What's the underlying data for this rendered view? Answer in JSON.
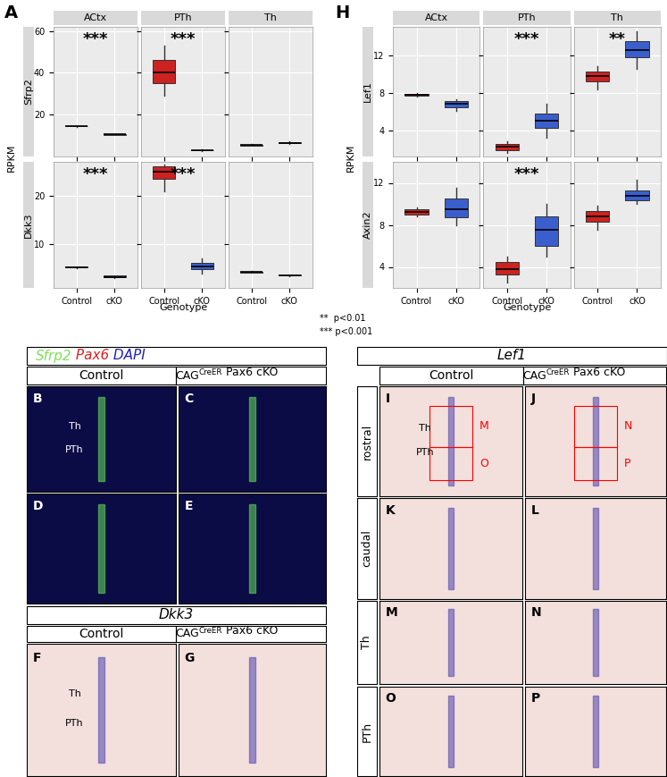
{
  "chart_data": [
    {
      "type": "box",
      "panel": "A",
      "facets": [
        "ACtx",
        "PTh",
        "Th"
      ],
      "categories": [
        "Control",
        "cKO"
      ],
      "colors": [
        "#cc2222",
        "#3a5fcd"
      ],
      "ylabel": "RPKM",
      "xlabel": "Genotype",
      "grid": true,
      "rows": [
        {
          "name": "Sfrp2",
          "ylim": [
            0,
            62
          ],
          "yticks": [
            20,
            40,
            60
          ],
          "boxes": [
            [
              [
                14.3,
                14.4,
                14.5,
                14.6,
                14.7
              ],
              [
                10.3,
                10.4,
                10.5,
                10.6,
                10.7
              ]
            ],
            [
              [
                29,
                35,
                40,
                46,
                53
              ],
              [
                2.5,
                2.8,
                3,
                3.2,
                3.5
              ]
            ],
            [
              [
                5,
                5.3,
                5.5,
                5.7,
                6
              ],
              [
                6,
                6.3,
                6.6,
                6.9,
                7.2
              ]
            ]
          ],
          "stars": [
            "***",
            "***",
            null
          ]
        },
        {
          "name": "Dkk3",
          "ylim": [
            1,
            27
          ],
          "yticks": [
            10,
            20
          ],
          "boxes": [
            [
              [
                5.1,
                5.2,
                5.3,
                5.4,
                5.5
              ],
              [
                3.1,
                3.2,
                3.3,
                3.5,
                3.6
              ]
            ],
            [
              [
                21,
                23.5,
                25,
                26,
                26.5
              ],
              [
                4,
                4.8,
                5.5,
                6.2,
                7
              ]
            ],
            [
              [
                4.1,
                4.2,
                4.3,
                4.4,
                4.5
              ],
              [
                3.4,
                3.5,
                3.6,
                3.7,
                3.8
              ]
            ]
          ],
          "stars": [
            "***",
            "***",
            null
          ]
        }
      ]
    },
    {
      "type": "box",
      "panel": "H",
      "facets": [
        "ACtx",
        "PTh",
        "Th"
      ],
      "categories": [
        "Control",
        "cKO"
      ],
      "colors": [
        "#cc2222",
        "#3a5fcd"
      ],
      "ylabel": "RPKM",
      "xlabel": "Genotype",
      "grid": true,
      "rows": [
        {
          "name": "Lef1",
          "ylim": [
            1.2,
            15
          ],
          "yticks": [
            4,
            8,
            12
          ],
          "boxes": [
            [
              [
                7.6,
                7.7,
                7.8,
                7.9,
                8
              ],
              [
                6.1,
                6.4,
                6.8,
                7.1,
                7.3
              ]
            ],
            [
              [
                1.6,
                1.9,
                2.2,
                2.5,
                2.8
              ],
              [
                3.2,
                4.2,
                5,
                5.8,
                6.8
              ]
            ],
            [
              [
                8.3,
                9.2,
                9.8,
                10.2,
                10.8
              ],
              [
                10.5,
                11.8,
                12.5,
                13.5,
                14.5
              ]
            ]
          ],
          "stars": [
            null,
            "***",
            "**"
          ]
        },
        {
          "name": "Axin2",
          "ylim": [
            2,
            14
          ],
          "yticks": [
            4,
            8,
            12
          ],
          "boxes": [
            [
              [
                8.8,
                9,
                9.2,
                9.5,
                9.7
              ],
              [
                8,
                8.7,
                9.5,
                10.5,
                11.5
              ]
            ],
            [
              [
                2.5,
                3.3,
                3.8,
                4.5,
                5
              ],
              [
                5,
                6,
                7.5,
                8.8,
                10
              ]
            ],
            [
              [
                7.5,
                8.3,
                8.8,
                9.3,
                9.8
              ],
              [
                10,
                10.3,
                10.8,
                11.3,
                12.3
              ]
            ]
          ],
          "stars": [
            null,
            "***",
            null
          ]
        }
      ]
    }
  ],
  "significance_legend": [
    "**  p<0.01",
    "*** p<0.001"
  ],
  "images": {
    "fluorescence_header": [
      {
        "text": "Sfrp2",
        "color": "#7fe05a"
      },
      {
        "text": "Pax6",
        "color": "#e02020"
      },
      {
        "text": "DAPI",
        "color": "#2020c0"
      }
    ],
    "control": "Control",
    "cko_parts": [
      "CAG",
      "CreER",
      " Pax6 cKO"
    ],
    "dkk3_header": "Dkk3",
    "lef1_header": "Lef1",
    "row_labels": [
      "rostral",
      "caudal",
      "Th",
      "PTh"
    ],
    "panels": [
      {
        "letter": "B",
        "style": "fluorescence",
        "labels": [
          "Th",
          "PTh"
        ]
      },
      {
        "letter": "C",
        "style": "fluorescence",
        "labels": []
      },
      {
        "letter": "D",
        "style": "fluorescence",
        "labels": []
      },
      {
        "letter": "E",
        "style": "fluorescence",
        "labels": []
      },
      {
        "letter": "F",
        "style": "ish",
        "labels": [
          "Th",
          "PTh"
        ]
      },
      {
        "letter": "G",
        "style": "ish",
        "labels": []
      },
      {
        "letter": "I",
        "style": "ish",
        "labels": [
          "Th",
          "PTh"
        ],
        "regions": [
          "M",
          "O"
        ]
      },
      {
        "letter": "J",
        "style": "ish",
        "labels": [],
        "regions": [
          "N",
          "P"
        ]
      },
      {
        "letter": "K",
        "style": "ish",
        "labels": []
      },
      {
        "letter": "L",
        "style": "ish",
        "labels": []
      },
      {
        "letter": "M",
        "style": "ish",
        "labels": []
      },
      {
        "letter": "N",
        "style": "ish",
        "labels": []
      },
      {
        "letter": "O",
        "style": "ish",
        "labels": []
      },
      {
        "letter": "P",
        "style": "ish",
        "labels": []
      }
    ]
  }
}
